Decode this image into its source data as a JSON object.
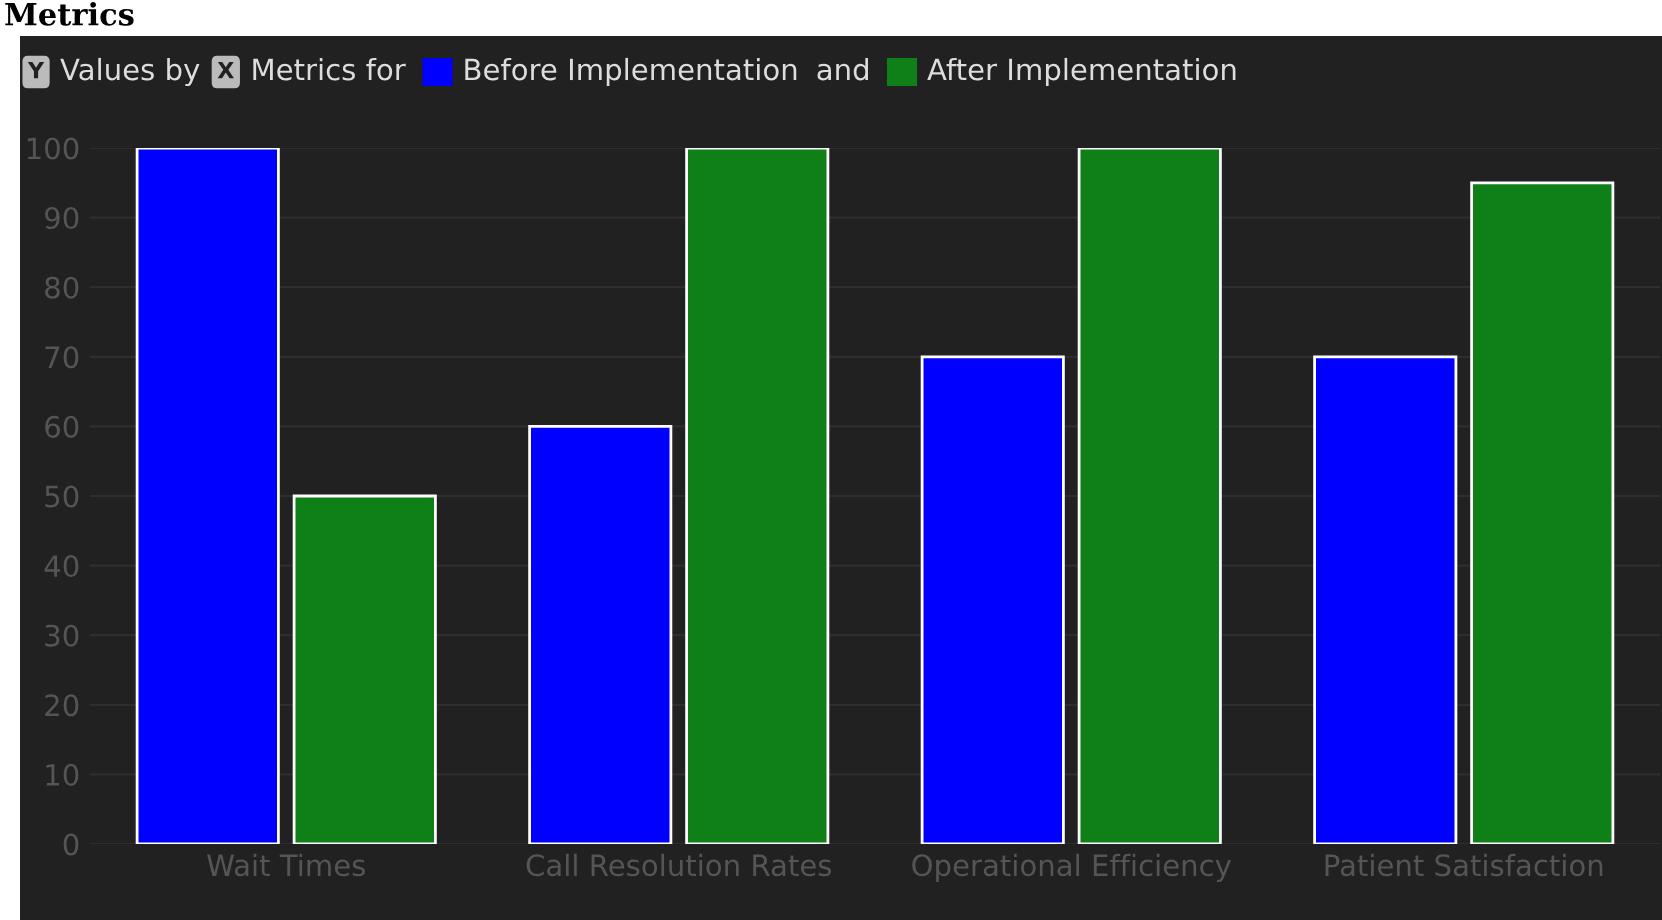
{
  "chart_data": {
    "type": "bar",
    "title": "Metrics",
    "annotations": [
      "Y",
      "Values by",
      "X",
      "Metrics for",
      "and"
    ],
    "categories": [
      "Wait Times",
      "Call Resolution Rates",
      "Operational Efficiency",
      "Patient Satisfaction"
    ],
    "series": [
      {
        "name": "Before Implementation",
        "color": "#0000ff",
        "values": [
          100,
          60,
          70,
          70
        ]
      },
      {
        "name": "After Implementation",
        "color": "#0f7f18",
        "values": [
          50,
          100,
          100,
          95
        ]
      }
    ],
    "ylim": [
      0,
      100
    ],
    "yticks": [
      0,
      10,
      20,
      30,
      40,
      50,
      60,
      70,
      80,
      90,
      100
    ],
    "grid": "y",
    "legend": "top left"
  }
}
